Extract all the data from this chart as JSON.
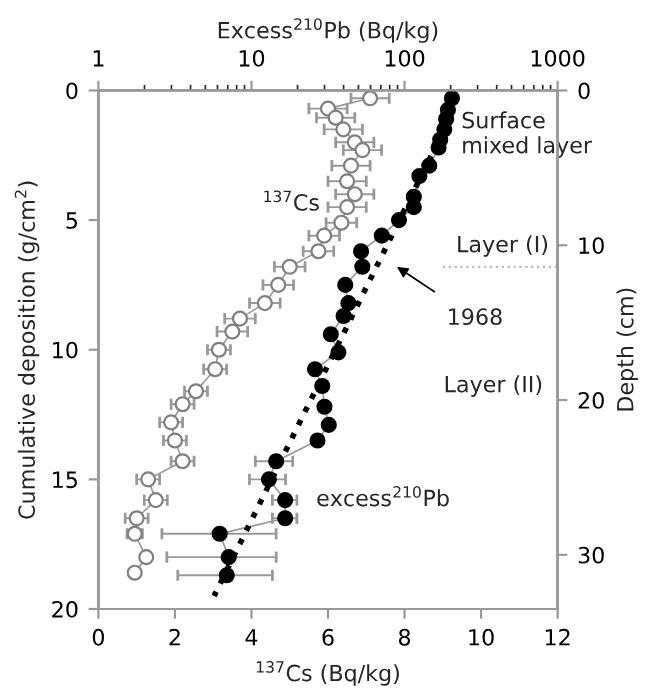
{
  "chart_data": {
    "type": "line",
    "xlabel": "$^{137}$Cs (Bq/kg)",
    "x2label": "Excess$^{210}$Pb (Bq/kg)",
    "ylabel": "Cumulative deposition (g/cm$^{2}$)",
    "y2label": "Depth (cm)",
    "xlim": [
      0,
      12
    ],
    "xticks": [
      0,
      2,
      4,
      6,
      8,
      10,
      12
    ],
    "x2lim": [
      1,
      1000
    ],
    "x2ticks": [
      1,
      10,
      100,
      1000
    ],
    "log": "x2",
    "ylim": [
      20,
      0
    ],
    "yticks": [
      0,
      5,
      10,
      15,
      20
    ],
    "y2lim": [
      33.5,
      0
    ],
    "y2ticks": [
      0,
      10,
      20,
      30
    ],
    "marker": "circle",
    "grid": false,
    "series": [
      {
        "color": "#ffffff",
        "x": [
          7.1,
          6.0,
          6.2,
          6.4,
          6.7,
          6.9,
          6.6,
          6.5,
          6.7,
          6.5,
          6.35,
          5.9,
          5.75,
          5.0,
          4.7,
          4.35,
          3.7,
          3.5,
          3.15,
          3.05,
          2.55,
          2.2,
          1.9,
          2.0,
          2.2,
          1.3,
          1.5,
          1.0,
          0.95,
          1.25,
          0.95
        ],
        "values": [
          0.3,
          0.7,
          1.05,
          1.5,
          2.0,
          2.3,
          2.9,
          3.5,
          4.0,
          4.5,
          5.1,
          5.6,
          6.2,
          6.8,
          7.5,
          8.2,
          8.8,
          9.3,
          10.0,
          10.75,
          11.6,
          12.1,
          12.8,
          13.5,
          14.3,
          15.0,
          15.8,
          16.5,
          17.1,
          18.0,
          18.6
        ],
        "xerrors": [
          0.5,
          0.5,
          0.5,
          0.5,
          0.5,
          0.5,
          0.5,
          0.5,
          0.5,
          0.5,
          0.4,
          0.4,
          0.4,
          0.4,
          0.4,
          0.4,
          0.4,
          0.4,
          0.3,
          0.3,
          0.3,
          0.3,
          0.3,
          0.3,
          0.3,
          0.3,
          0.3,
          0.3,
          0.2,
          null,
          null
        ]
      },
      {
        "color": "#000000",
        "axis": "x2",
        "x": [
          204,
          192,
          187,
          182,
          171,
          167,
          145,
          125,
          115,
          115,
          92,
          71,
          52,
          53,
          41,
          43,
          40,
          33,
          37,
          26,
          29,
          30,
          32,
          27,
          14.5,
          13,
          16.6,
          16.6,
          6.2,
          7.1,
          6.9
        ],
        "values": [
          0.3,
          0.75,
          1.1,
          1.5,
          1.9,
          2.2,
          2.9,
          3.3,
          4.1,
          4.5,
          5.0,
          5.6,
          6.2,
          6.8,
          7.5,
          8.2,
          8.7,
          9.4,
          10.1,
          10.75,
          11.4,
          12.2,
          12.9,
          13.5,
          14.3,
          15.0,
          15.8,
          16.5,
          17.1,
          18.0,
          18.7
        ],
        "xerrors": [
          null,
          null,
          null,
          null,
          null,
          null,
          null,
          null,
          null,
          null,
          null,
          null,
          null,
          null,
          null,
          null,
          null,
          null,
          null,
          null,
          null,
          null,
          null,
          null,
          [
            10.6,
            18.6
          ],
          [
            9.7,
            16.7
          ],
          [
            13.7,
            19.8
          ],
          [
            13.7,
            19.8
          ],
          [
            2.6,
            14.5
          ],
          [
            2.8,
            14.5
          ],
          [
            3.3,
            13.7
          ]
        ]
      },
      {
        "type": "line",
        "color": "#000000",
        "axis": "x2",
        "marker": "none",
        "line_style": "dotted",
        "x": [
          200,
          5.7
        ],
        "values": [
          1.0,
          19.5
        ]
      }
    ],
    "ref_lines": [
      {
        "axis": "y",
        "value": 6.8,
        "color": "#bbbbbb",
        "line_style": "dotted"
      }
    ],
    "annotations": [
      "Surface\nmixed layer",
      "$^{137}$Cs",
      "Layer (I)",
      "Layer (II)",
      "excess$^{210}$Pb",
      "1968"
    ]
  }
}
